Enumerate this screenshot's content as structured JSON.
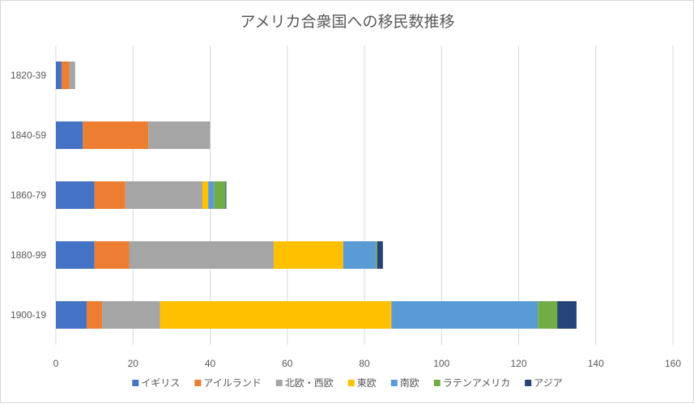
{
  "chart_data": {
    "type": "bar",
    "orientation": "horizontal",
    "stacked": true,
    "title": "アメリカ合衆国への移民数推移",
    "categories": [
      "1820-39",
      "1840-59",
      "1860-79",
      "1880-99",
      "1900-19"
    ],
    "xlim": [
      0,
      160
    ],
    "x_ticks": [
      "0",
      "20",
      "40",
      "60",
      "80",
      "100",
      "120",
      "140",
      "160"
    ],
    "grid": true,
    "legend_position": "bottom",
    "series": [
      {
        "name": "イギリス",
        "color": "#4472c4",
        "values": [
          1.5,
          7,
          10,
          10,
          8
        ]
      },
      {
        "name": "アイルランド",
        "color": "#ed7d31",
        "values": [
          2,
          17,
          8,
          9,
          4
        ]
      },
      {
        "name": "北欧・西欧",
        "color": "#a5a5a5",
        "values": [
          1.5,
          16,
          20,
          37.5,
          15
        ]
      },
      {
        "name": "東欧",
        "color": "#ffc000",
        "values": [
          0,
          0,
          1.5,
          18,
          60
        ]
      },
      {
        "name": "南欧",
        "color": "#5b9bd5",
        "values": [
          0,
          0,
          1.5,
          8.5,
          38
        ]
      },
      {
        "name": "ラテンアメリカ",
        "color": "#70ad47",
        "values": [
          0,
          0,
          3,
          0.3,
          5
        ]
      },
      {
        "name": "アジア",
        "color": "#264478",
        "values": [
          0,
          0,
          0.2,
          1.5,
          5
        ]
      }
    ]
  }
}
